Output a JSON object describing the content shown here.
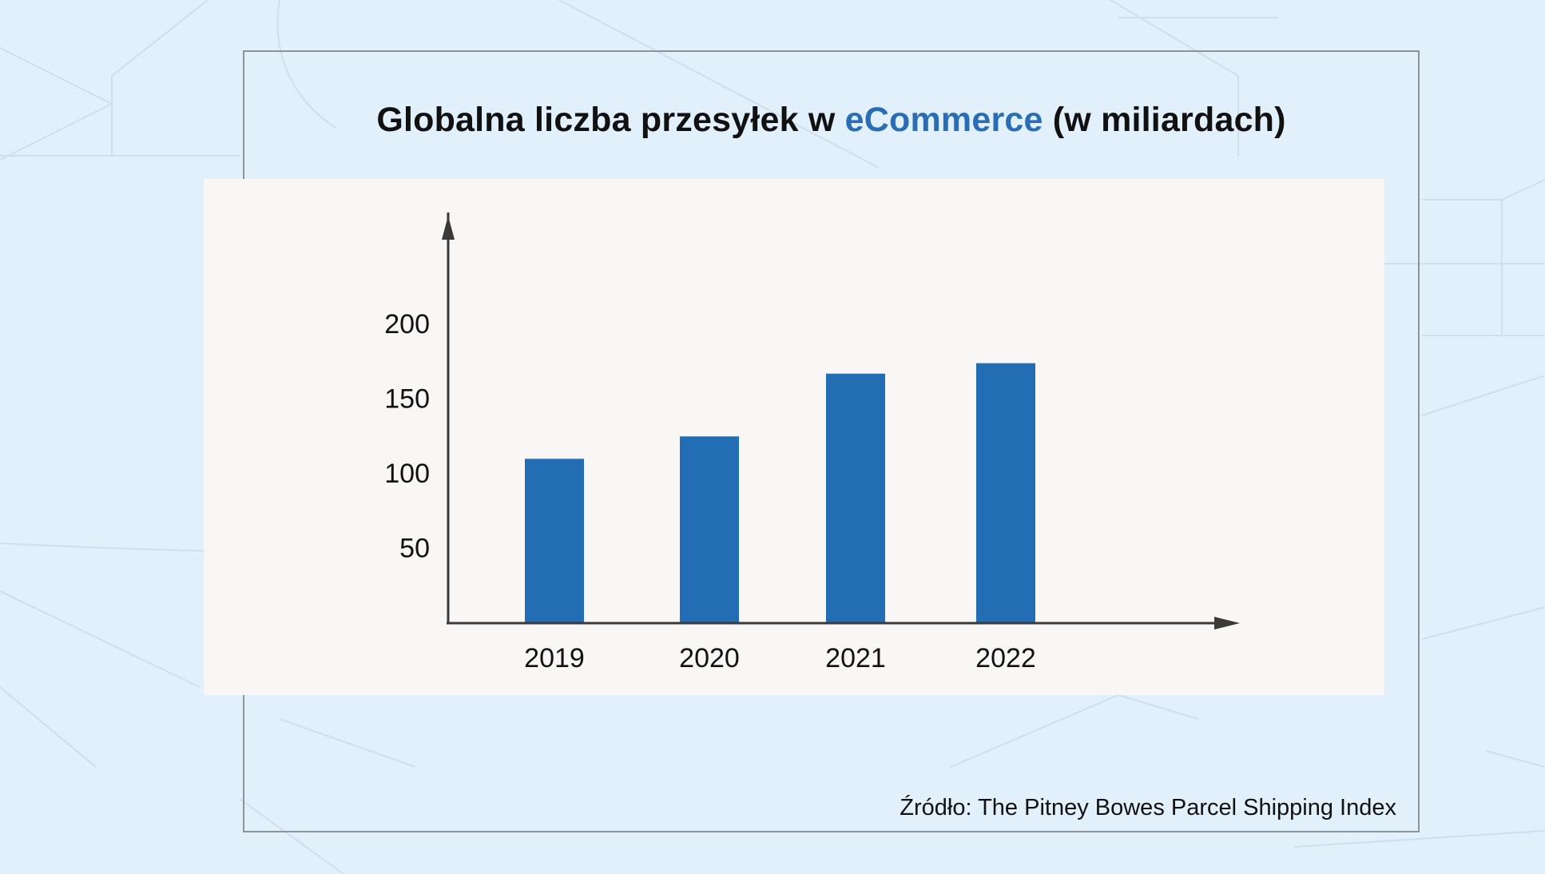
{
  "title": {
    "before": "Globalna liczba przesyłek w ",
    "accent": "eCommerce",
    "after": " (w miliardach)"
  },
  "source": "Źródło: The Pitney Bowes Parcel Shipping Index",
  "colors": {
    "background": "#e1f0fb",
    "panel": "#f8f7f5",
    "bar": "#226db4",
    "accent": "#2a6db5",
    "axis": "#3a3a3a"
  },
  "chart_data": {
    "type": "bar",
    "title": "Globalna liczba przesyłek w eCommerce (w miliardach)",
    "xlabel": "",
    "ylabel": "",
    "categories": [
      "2019",
      "2020",
      "2021",
      "2022"
    ],
    "values": [
      110,
      125,
      167,
      174
    ],
    "yticks": [
      50,
      100,
      150,
      200
    ],
    "ylim": [
      0,
      275
    ],
    "grid": false,
    "legend": "none"
  }
}
